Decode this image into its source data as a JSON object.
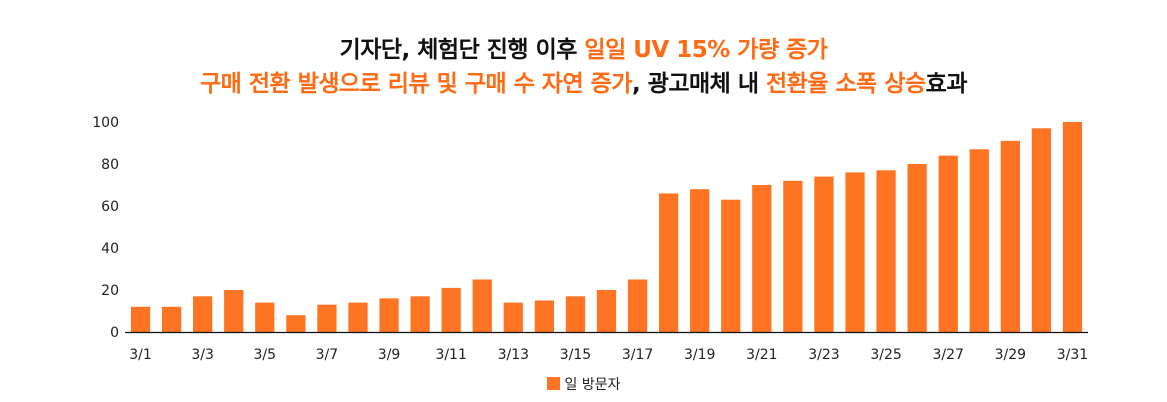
{
  "title": {
    "line1": {
      "a": "기자단, 체험단 진행 이후 ",
      "b": "일일 UV 15% 가량 증가"
    },
    "line2": {
      "a": "구매 전환 발생으로 리뷰 및 구매 수 자연 증가",
      "b": ", 광고매체 내 ",
      "c": "전환율 소폭 상승",
      "d": "효과"
    }
  },
  "colors": {
    "accent": "#ff6a13",
    "bar": "#ff7422",
    "text": "#111111"
  },
  "chart_data": {
    "type": "bar",
    "categories": [
      "3/1",
      "3/2",
      "3/3",
      "3/4",
      "3/5",
      "3/6",
      "3/7",
      "3/8",
      "3/9",
      "3/10",
      "3/11",
      "3/12",
      "3/13",
      "3/14",
      "3/15",
      "3/16",
      "3/17",
      "3/18",
      "3/19",
      "3/20",
      "3/21",
      "3/22",
      "3/23",
      "3/24",
      "3/25",
      "3/26",
      "3/27",
      "3/28",
      "3/29",
      "3/30",
      "3/31"
    ],
    "x_tick_labels": [
      "3/1",
      "3/3",
      "3/5",
      "3/7",
      "3/9",
      "3/11",
      "3/13",
      "3/15",
      "3/17",
      "3/19",
      "3/21",
      "3/23",
      "3/25",
      "3/27",
      "3/29",
      "3/31"
    ],
    "series": [
      {
        "name": "일 방문자",
        "values": [
          12,
          12,
          17,
          20,
          14,
          8,
          13,
          14,
          16,
          17,
          21,
          25,
          14,
          15,
          17,
          20,
          25,
          66,
          68,
          63,
          70,
          72,
          74,
          76,
          77,
          80,
          84,
          87,
          91,
          97,
          100
        ]
      }
    ],
    "ylim": [
      0,
      100
    ],
    "yticks": [
      0,
      20,
      40,
      60,
      80,
      100
    ],
    "grid": false,
    "legend": "bottom-center"
  }
}
